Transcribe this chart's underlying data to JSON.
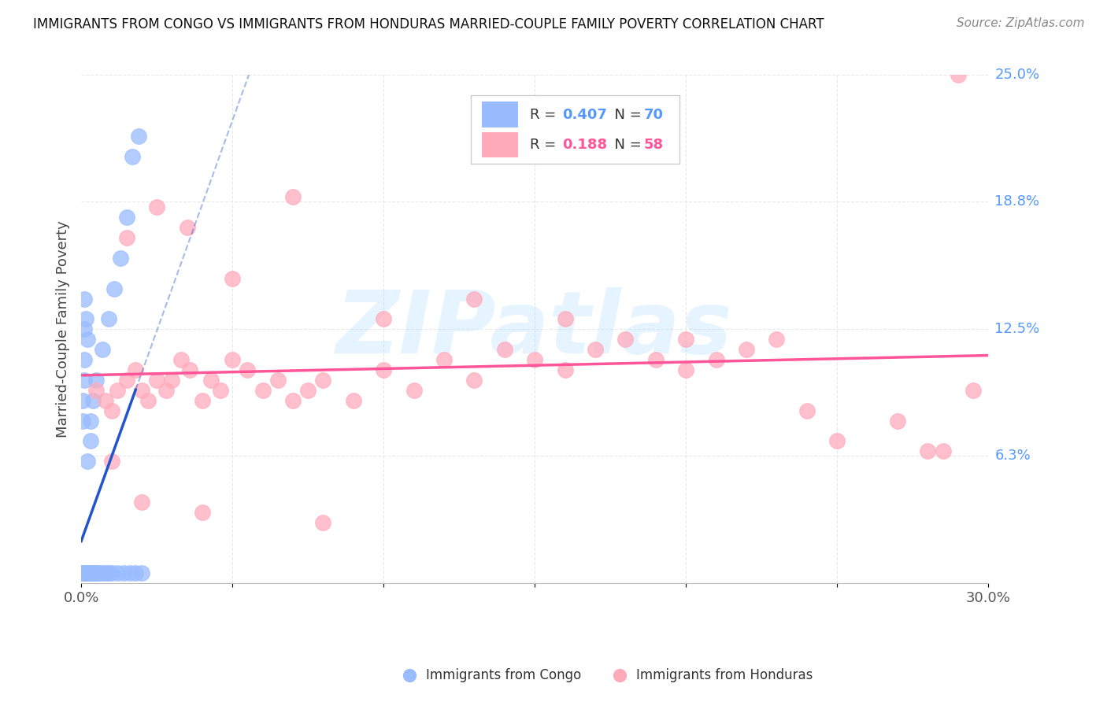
{
  "title": "IMMIGRANTS FROM CONGO VS IMMIGRANTS FROM HONDURAS MARRIED-COUPLE FAMILY POVERTY CORRELATION CHART",
  "source": "Source: ZipAtlas.com",
  "ylabel": "Married-Couple Family Poverty",
  "watermark": "ZIPatlas",
  "xlim": [
    0.0,
    0.3
  ],
  "ylim": [
    0.0,
    0.25
  ],
  "congo_color": "#99BBFF",
  "honduras_color": "#FFAABB",
  "congo_line_color": "#2255CC",
  "honduras_line_color": "#FF5599",
  "congo_R": 0.407,
  "congo_N": 70,
  "honduras_R": 0.188,
  "honduras_N": 58,
  "background_color": "#FFFFFF",
  "grid_color": "#E8E8E8",
  "title_color": "#111111",
  "right_label_color_blue": "#5599FF",
  "right_label_color_pink": "#FF5599",
  "congo_scatter_x": [
    0.0005,
    0.0005,
    0.0005,
    0.0005,
    0.0005,
    0.0005,
    0.0005,
    0.0005,
    0.0005,
    0.0005,
    0.001,
    0.001,
    0.001,
    0.001,
    0.001,
    0.001,
    0.001,
    0.001,
    0.001,
    0.001,
    0.0015,
    0.0015,
    0.0015,
    0.0015,
    0.0015,
    0.0015,
    0.0015,
    0.002,
    0.002,
    0.002,
    0.002,
    0.0025,
    0.0025,
    0.003,
    0.003,
    0.003,
    0.004,
    0.004,
    0.005,
    0.005,
    0.006,
    0.007,
    0.008,
    0.009,
    0.01,
    0.012,
    0.014,
    0.016,
    0.018,
    0.02,
    0.0005,
    0.0005,
    0.001,
    0.001,
    0.001,
    0.001,
    0.0015,
    0.002,
    0.002,
    0.003,
    0.003,
    0.004,
    0.005,
    0.007,
    0.009,
    0.011,
    0.013,
    0.015,
    0.017,
    0.019
  ],
  "congo_scatter_y": [
    0.005,
    0.005,
    0.005,
    0.005,
    0.005,
    0.005,
    0.005,
    0.005,
    0.005,
    0.005,
    0.005,
    0.005,
    0.005,
    0.005,
    0.005,
    0.005,
    0.005,
    0.005,
    0.005,
    0.005,
    0.005,
    0.005,
    0.005,
    0.005,
    0.005,
    0.005,
    0.005,
    0.005,
    0.005,
    0.005,
    0.005,
    0.005,
    0.005,
    0.005,
    0.005,
    0.005,
    0.005,
    0.005,
    0.005,
    0.005,
    0.005,
    0.005,
    0.005,
    0.005,
    0.005,
    0.005,
    0.005,
    0.005,
    0.005,
    0.005,
    0.08,
    0.09,
    0.1,
    0.11,
    0.125,
    0.14,
    0.13,
    0.12,
    0.06,
    0.07,
    0.08,
    0.09,
    0.1,
    0.115,
    0.13,
    0.145,
    0.16,
    0.18,
    0.21,
    0.22
  ],
  "honduras_scatter_x": [
    0.005,
    0.008,
    0.01,
    0.012,
    0.015,
    0.018,
    0.02,
    0.022,
    0.025,
    0.028,
    0.03,
    0.033,
    0.036,
    0.04,
    0.043,
    0.046,
    0.05,
    0.055,
    0.06,
    0.065,
    0.07,
    0.075,
    0.08,
    0.09,
    0.1,
    0.11,
    0.12,
    0.13,
    0.14,
    0.15,
    0.16,
    0.17,
    0.18,
    0.19,
    0.2,
    0.21,
    0.22,
    0.23,
    0.25,
    0.27,
    0.285,
    0.29,
    0.295,
    0.015,
    0.025,
    0.035,
    0.05,
    0.07,
    0.1,
    0.13,
    0.16,
    0.2,
    0.24,
    0.28,
    0.01,
    0.02,
    0.04,
    0.08
  ],
  "honduras_scatter_y": [
    0.095,
    0.09,
    0.085,
    0.095,
    0.1,
    0.105,
    0.095,
    0.09,
    0.1,
    0.095,
    0.1,
    0.11,
    0.105,
    0.09,
    0.1,
    0.095,
    0.11,
    0.105,
    0.095,
    0.1,
    0.09,
    0.095,
    0.1,
    0.09,
    0.105,
    0.095,
    0.11,
    0.1,
    0.115,
    0.11,
    0.105,
    0.115,
    0.12,
    0.11,
    0.105,
    0.11,
    0.115,
    0.12,
    0.07,
    0.08,
    0.065,
    0.25,
    0.095,
    0.17,
    0.185,
    0.175,
    0.15,
    0.19,
    0.13,
    0.14,
    0.13,
    0.12,
    0.085,
    0.065,
    0.06,
    0.04,
    0.035,
    0.03
  ],
  "ytick_labels": [
    "6.3%",
    "12.5%",
    "18.8%",
    "25.0%"
  ],
  "ytick_positions": [
    0.063,
    0.125,
    0.188,
    0.25
  ]
}
